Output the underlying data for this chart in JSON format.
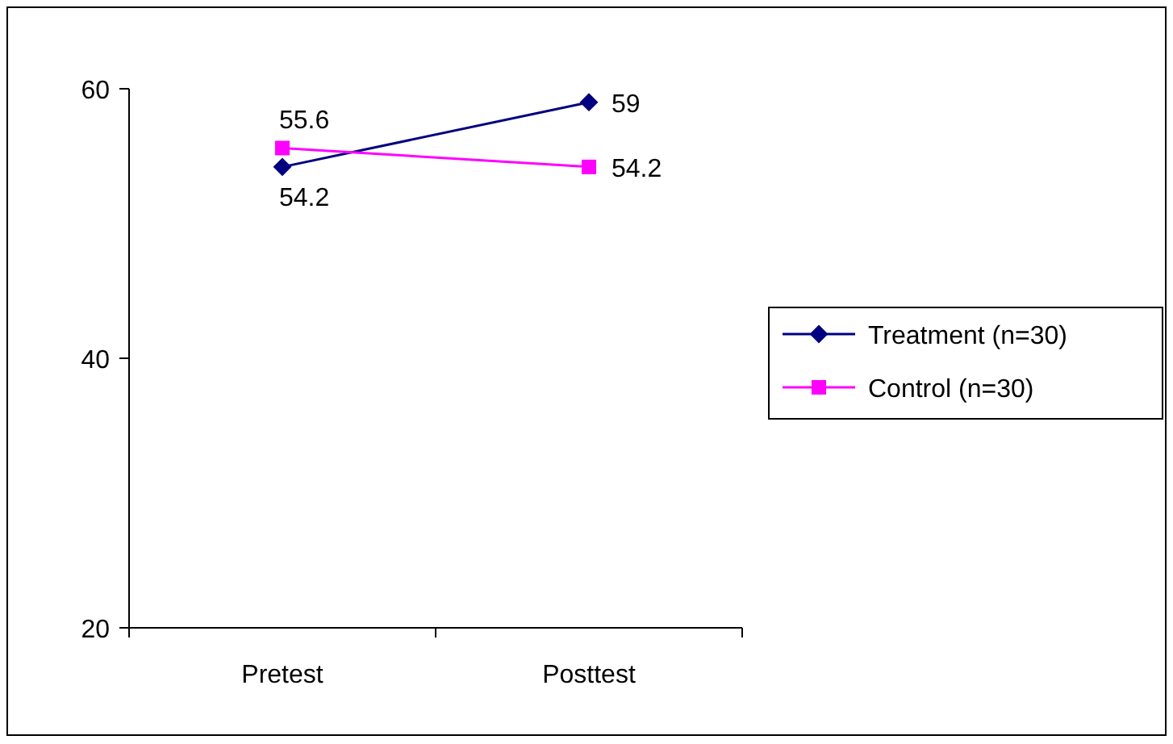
{
  "chart_data": {
    "type": "line",
    "categories": [
      "Pretest",
      "Posttest"
    ],
    "series": [
      {
        "name": "Treatment (n=30)",
        "color": "#000080",
        "values": [
          54.2,
          59
        ],
        "marker": "diamond"
      },
      {
        "name": "Control (n=30)",
        "color": "#ff00ff",
        "values": [
          55.6,
          54.2
        ],
        "marker": "square"
      }
    ],
    "ylim": [
      20,
      60
    ],
    "yticks": [
      20,
      40,
      60
    ],
    "data_labels": true,
    "legend": "right",
    "grid": false
  }
}
